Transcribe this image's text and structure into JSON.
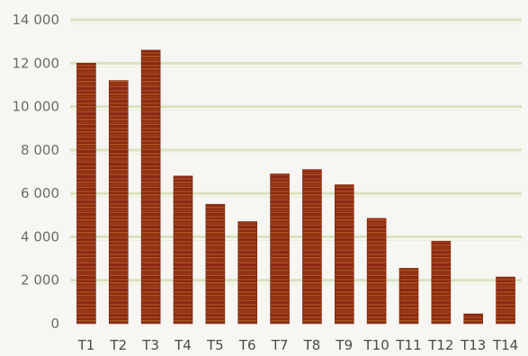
{
  "chart_data": {
    "type": "bar",
    "title": "",
    "xlabel": "",
    "ylabel": "",
    "categories": [
      "T1",
      "T2",
      "T3",
      "T4",
      "T5",
      "T6",
      "T7",
      "T8",
      "T9",
      "T10",
      "T11",
      "T12",
      "T13",
      "T14"
    ],
    "values": [
      12000,
      11200,
      12600,
      6800,
      5500,
      4700,
      6900,
      7100,
      6400,
      4850,
      2550,
      3800,
      450,
      2150
    ],
    "ylim": [
      0,
      14000
    ],
    "yticks": [
      0,
      2000,
      4000,
      6000,
      8000,
      10000,
      12000,
      14000
    ],
    "ytick_labels": [
      "0",
      "2 000",
      "4 000",
      "6 000",
      "8 000",
      "10 000",
      "12 000",
      "14 000"
    ],
    "grid": true,
    "legend": "none",
    "colors": {
      "bar": "#8b2a14",
      "bar_stripe": "#b5651d",
      "grid": "#d8e3bf",
      "background": "#f7f6f2"
    }
  }
}
